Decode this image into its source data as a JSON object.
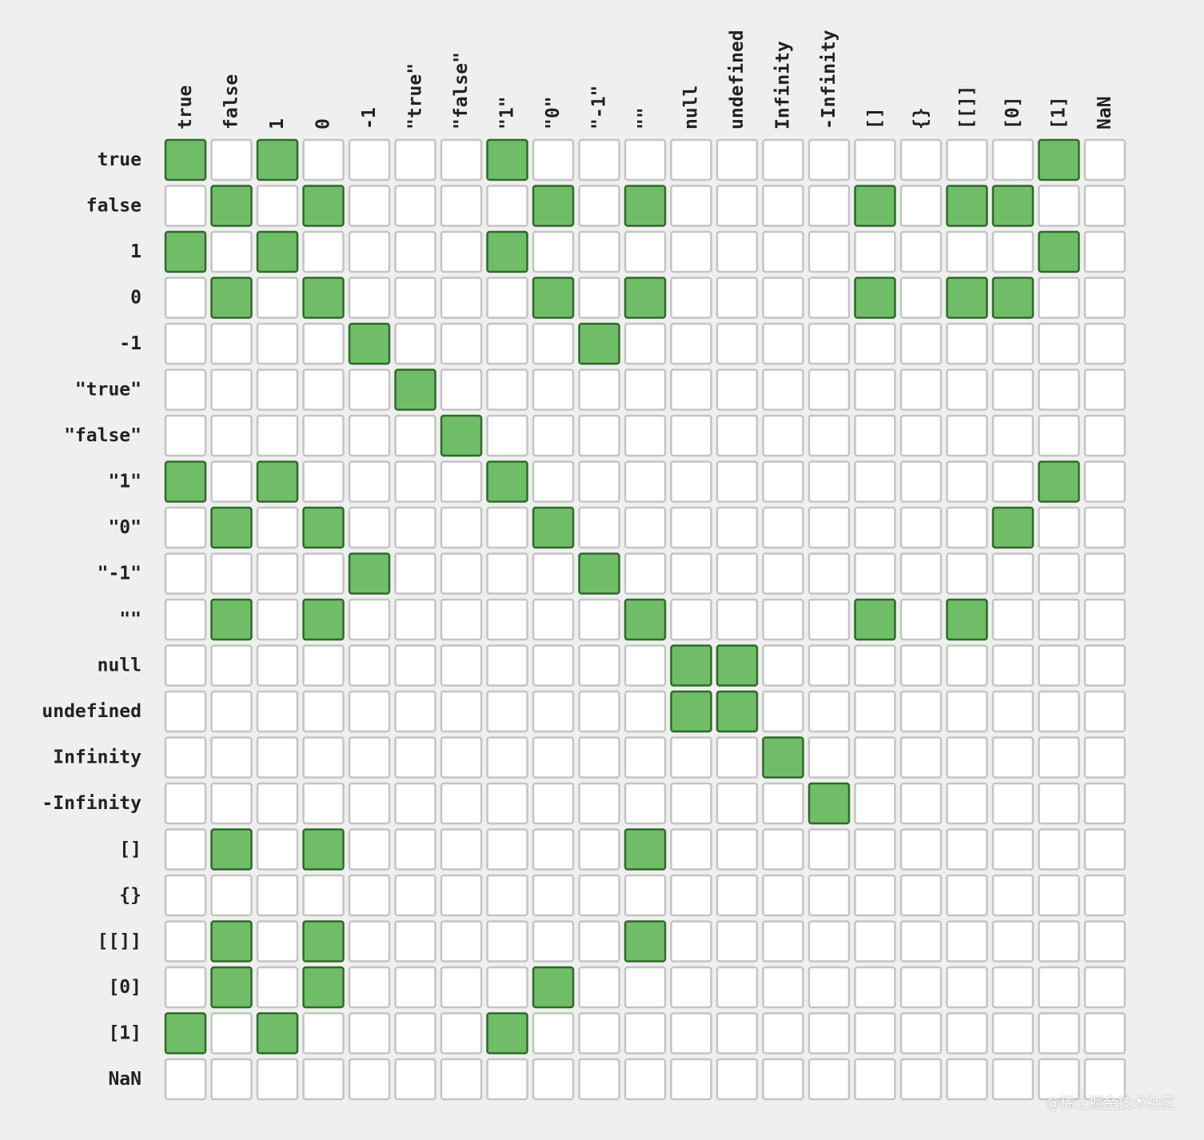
{
  "chart_data": {
    "type": "heatmap",
    "colors": {
      "equal_fill": "#70bd67",
      "equal_border": "#2d6b28",
      "empty_fill": "#ffffff",
      "empty_border": "#c4c4c4",
      "background": "#efefef"
    },
    "columns": [
      "true",
      "false",
      "1",
      "0",
      "-1",
      "\"true\"",
      "\"false\"",
      "\"1\"",
      "\"0\"",
      "\"-1\"",
      "\"\"",
      "null",
      "undefined",
      "Infinity",
      "-Infinity",
      "[]",
      "{}",
      "[[]]",
      "[0]",
      "[1]",
      "NaN"
    ],
    "rows": [
      "true",
      "false",
      "1",
      "0",
      "-1",
      "\"true\"",
      "\"false\"",
      "\"1\"",
      "\"0\"",
      "\"-1\"",
      "\"\"",
      "null",
      "undefined",
      "Infinity",
      "-Infinity",
      "[]",
      "{}",
      "[[]]",
      "[0]",
      "[1]",
      "NaN"
    ],
    "matrix": [
      [
        1,
        0,
        1,
        0,
        0,
        0,
        0,
        1,
        0,
        0,
        0,
        0,
        0,
        0,
        0,
        0,
        0,
        0,
        0,
        1,
        0
      ],
      [
        0,
        1,
        0,
        1,
        0,
        0,
        0,
        0,
        1,
        0,
        1,
        0,
        0,
        0,
        0,
        1,
        0,
        1,
        1,
        0,
        0
      ],
      [
        1,
        0,
        1,
        0,
        0,
        0,
        0,
        1,
        0,
        0,
        0,
        0,
        0,
        0,
        0,
        0,
        0,
        0,
        0,
        1,
        0
      ],
      [
        0,
        1,
        0,
        1,
        0,
        0,
        0,
        0,
        1,
        0,
        1,
        0,
        0,
        0,
        0,
        1,
        0,
        1,
        1,
        0,
        0
      ],
      [
        0,
        0,
        0,
        0,
        1,
        0,
        0,
        0,
        0,
        1,
        0,
        0,
        0,
        0,
        0,
        0,
        0,
        0,
        0,
        0,
        0
      ],
      [
        0,
        0,
        0,
        0,
        0,
        1,
        0,
        0,
        0,
        0,
        0,
        0,
        0,
        0,
        0,
        0,
        0,
        0,
        0,
        0,
        0
      ],
      [
        0,
        0,
        0,
        0,
        0,
        0,
        1,
        0,
        0,
        0,
        0,
        0,
        0,
        0,
        0,
        0,
        0,
        0,
        0,
        0,
        0
      ],
      [
        1,
        0,
        1,
        0,
        0,
        0,
        0,
        1,
        0,
        0,
        0,
        0,
        0,
        0,
        0,
        0,
        0,
        0,
        0,
        1,
        0
      ],
      [
        0,
        1,
        0,
        1,
        0,
        0,
        0,
        0,
        1,
        0,
        0,
        0,
        0,
        0,
        0,
        0,
        0,
        0,
        1,
        0,
        0
      ],
      [
        0,
        0,
        0,
        0,
        1,
        0,
        0,
        0,
        0,
        1,
        0,
        0,
        0,
        0,
        0,
        0,
        0,
        0,
        0,
        0,
        0
      ],
      [
        0,
        1,
        0,
        1,
        0,
        0,
        0,
        0,
        0,
        0,
        1,
        0,
        0,
        0,
        0,
        1,
        0,
        1,
        0,
        0,
        0
      ],
      [
        0,
        0,
        0,
        0,
        0,
        0,
        0,
        0,
        0,
        0,
        0,
        1,
        1,
        0,
        0,
        0,
        0,
        0,
        0,
        0,
        0
      ],
      [
        0,
        0,
        0,
        0,
        0,
        0,
        0,
        0,
        0,
        0,
        0,
        1,
        1,
        0,
        0,
        0,
        0,
        0,
        0,
        0,
        0
      ],
      [
        0,
        0,
        0,
        0,
        0,
        0,
        0,
        0,
        0,
        0,
        0,
        0,
        0,
        1,
        0,
        0,
        0,
        0,
        0,
        0,
        0
      ],
      [
        0,
        0,
        0,
        0,
        0,
        0,
        0,
        0,
        0,
        0,
        0,
        0,
        0,
        0,
        1,
        0,
        0,
        0,
        0,
        0,
        0
      ],
      [
        0,
        1,
        0,
        1,
        0,
        0,
        0,
        0,
        0,
        0,
        1,
        0,
        0,
        0,
        0,
        0,
        0,
        0,
        0,
        0,
        0
      ],
      [
        0,
        0,
        0,
        0,
        0,
        0,
        0,
        0,
        0,
        0,
        0,
        0,
        0,
        0,
        0,
        0,
        0,
        0,
        0,
        0,
        0
      ],
      [
        0,
        1,
        0,
        1,
        0,
        0,
        0,
        0,
        0,
        0,
        1,
        0,
        0,
        0,
        0,
        0,
        0,
        0,
        0,
        0,
        0
      ],
      [
        0,
        1,
        0,
        1,
        0,
        0,
        0,
        0,
        1,
        0,
        0,
        0,
        0,
        0,
        0,
        0,
        0,
        0,
        0,
        0,
        0
      ],
      [
        1,
        0,
        1,
        0,
        0,
        0,
        0,
        1,
        0,
        0,
        0,
        0,
        0,
        0,
        0,
        0,
        0,
        0,
        0,
        0,
        0
      ],
      [
        0,
        0,
        0,
        0,
        0,
        0,
        0,
        0,
        0,
        0,
        0,
        0,
        0,
        0,
        0,
        0,
        0,
        0,
        0,
        0,
        0
      ]
    ]
  },
  "watermark": "@稀土掘金技术社区"
}
